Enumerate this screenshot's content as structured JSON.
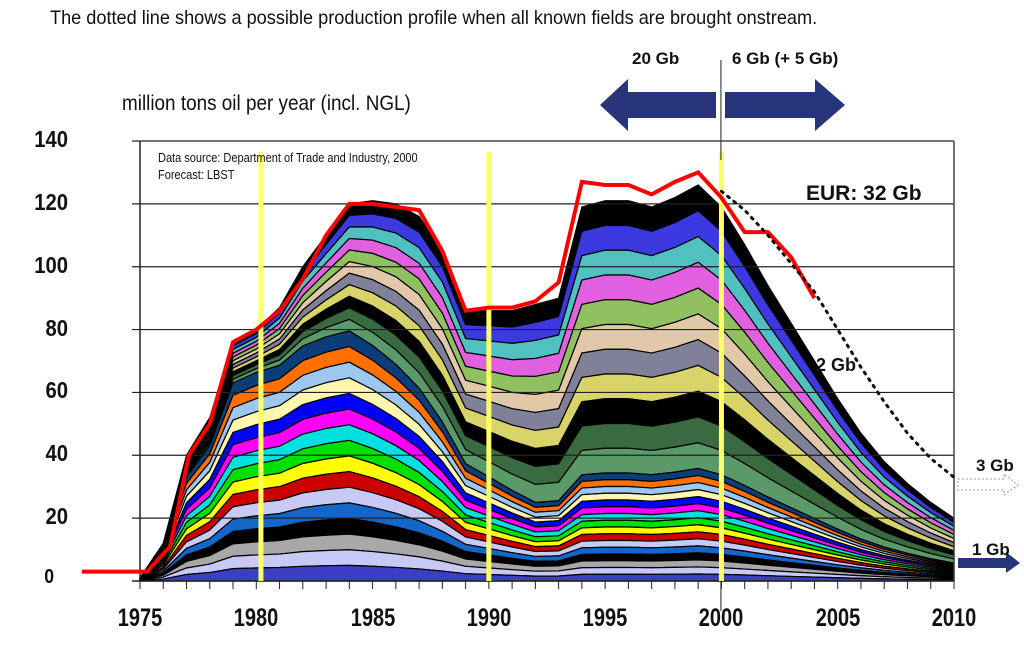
{
  "caption": "The dotted line shows a possible production profile when all known fields are brought onstream.",
  "chart_data": {
    "type": "area",
    "title": "The dotted line shows a possible production profile when all known fields are brought onstream.",
    "ylabel": "million tons oil per year (incl. NGL)",
    "xlabel": "",
    "xlim": [
      1975,
      2010
    ],
    "ylim": [
      0,
      140
    ],
    "x_ticks": [
      "1975",
      "1980",
      "1985",
      "1990",
      "1995",
      "2000",
      "2005",
      "2010"
    ],
    "y_ticks": [
      "0",
      "20",
      "40",
      "60",
      "80",
      "100",
      "120",
      "140"
    ],
    "grid": "horizontal",
    "source_note": [
      "Data source: Department of Trade and Industry, 2000",
      "Forecast: LBST"
    ],
    "stacked_total_approx": {
      "x": [
        1975,
        1976,
        1977,
        1978,
        1979,
        1980,
        1981,
        1982,
        1983,
        1984,
        1985,
        1986,
        1987,
        1988,
        1989,
        1990,
        1991,
        1992,
        1993,
        1994,
        1995,
        1996,
        1997,
        1998,
        1999,
        2000,
        2001,
        2002,
        2003,
        2004,
        2005,
        2006,
        2007,
        2008,
        2009,
        2010
      ],
      "y": [
        1,
        12,
        40,
        52,
        76,
        80,
        87,
        100,
        110,
        120,
        121,
        120,
        116,
        105,
        86,
        86,
        86,
        88,
        90,
        119,
        121,
        121,
        119,
        122,
        126,
        119,
        107,
        94,
        82,
        70,
        58,
        47,
        38,
        31,
        25,
        20
      ]
    },
    "series": [
      {
        "name": "Actual production",
        "style": "red-line",
        "color": "#ff0000",
        "x": [
          1972.5,
          1975.3,
          1976.3,
          1977.1,
          1978,
          1979,
          1980,
          1981,
          1982,
          1983,
          1984,
          1985,
          1986,
          1987,
          1988,
          1989,
          1990,
          1991,
          1992,
          1993,
          1994,
          1995,
          1996,
          1997,
          1998,
          1999,
          2000,
          2001,
          2002,
          2003,
          2004
        ],
        "y": [
          3,
          3,
          11,
          40,
          50,
          76,
          80,
          86,
          96,
          110,
          120,
          120,
          119,
          118,
          105,
          86,
          87,
          87,
          89,
          95,
          127,
          126,
          126,
          123,
          127,
          130,
          122,
          111,
          111,
          103,
          90
        ]
      },
      {
        "name": "Possible profile (all known fields)",
        "style": "dotted-line",
        "color": "#111111",
        "x": [
          2000,
          2001,
          2002,
          2003,
          2004,
          2005,
          2006,
          2007,
          2008,
          2009,
          2010
        ],
        "y": [
          124,
          118,
          110,
          101,
          92,
          80,
          68,
          57,
          47,
          39,
          33
        ]
      }
    ],
    "vertical_markers": [
      1980.2,
      1990,
      2000
    ],
    "annotations": {
      "eur": "EUR: 32 Gb",
      "left_arrow": "20 Gb",
      "right_arrow": "6 Gb (+ 5 Gb)",
      "mid": "2 Gb",
      "after_dotted": "3 Gb",
      "after_solid": "1 Gb"
    },
    "colors": {
      "actual_line": "#ff0000",
      "marker": "#ffff66",
      "arrow": "#28357a",
      "grid": "#222222"
    }
  }
}
